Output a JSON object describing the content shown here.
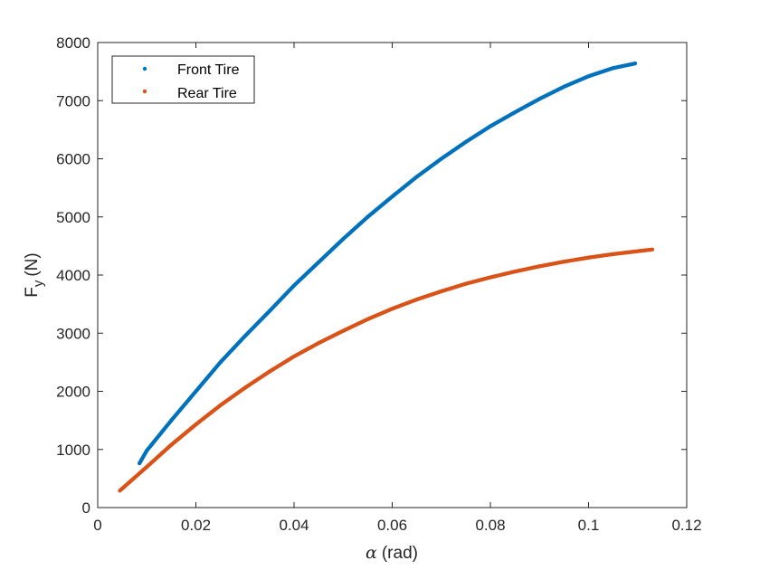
{
  "chart_data": {
    "type": "scatter",
    "xlabel": {
      "symbol": "α",
      "unit": "(rad)"
    },
    "ylabel": {
      "main": "F",
      "sub": "y",
      "unit": "(N)"
    },
    "xlim": [
      0,
      0.12
    ],
    "ylim": [
      0,
      8000
    ],
    "xticks": [
      "0",
      "0.02",
      "0.04",
      "0.06",
      "0.08",
      "0.1",
      "0.12"
    ],
    "yticks": [
      "0",
      "1000",
      "2000",
      "3000",
      "4000",
      "5000",
      "6000",
      "7000",
      "8000"
    ],
    "grid": false,
    "legend_position": "top-left",
    "series": [
      {
        "name": "Front Tire",
        "color": "#0072BD",
        "x": [
          0.0085,
          0.01,
          0.015,
          0.02,
          0.025,
          0.03,
          0.035,
          0.04,
          0.045,
          0.05,
          0.055,
          0.06,
          0.065,
          0.07,
          0.075,
          0.08,
          0.085,
          0.09,
          0.095,
          0.1,
          0.105,
          0.1095
        ],
        "y": [
          760,
          980,
          1500,
          2000,
          2500,
          2950,
          3380,
          3820,
          4220,
          4620,
          5000,
          5350,
          5690,
          6000,
          6290,
          6560,
          6800,
          7030,
          7240,
          7420,
          7560,
          7640
        ]
      },
      {
        "name": "Rear Tire",
        "color": "#D95319",
        "x": [
          0.0045,
          0.01,
          0.015,
          0.02,
          0.025,
          0.03,
          0.035,
          0.04,
          0.045,
          0.05,
          0.055,
          0.06,
          0.065,
          0.07,
          0.075,
          0.08,
          0.085,
          0.09,
          0.095,
          0.1,
          0.105,
          0.113
        ],
        "y": [
          290,
          700,
          1080,
          1430,
          1760,
          2060,
          2340,
          2600,
          2830,
          3040,
          3240,
          3420,
          3580,
          3720,
          3850,
          3960,
          4060,
          4150,
          4230,
          4300,
          4360,
          4440
        ]
      }
    ]
  }
}
